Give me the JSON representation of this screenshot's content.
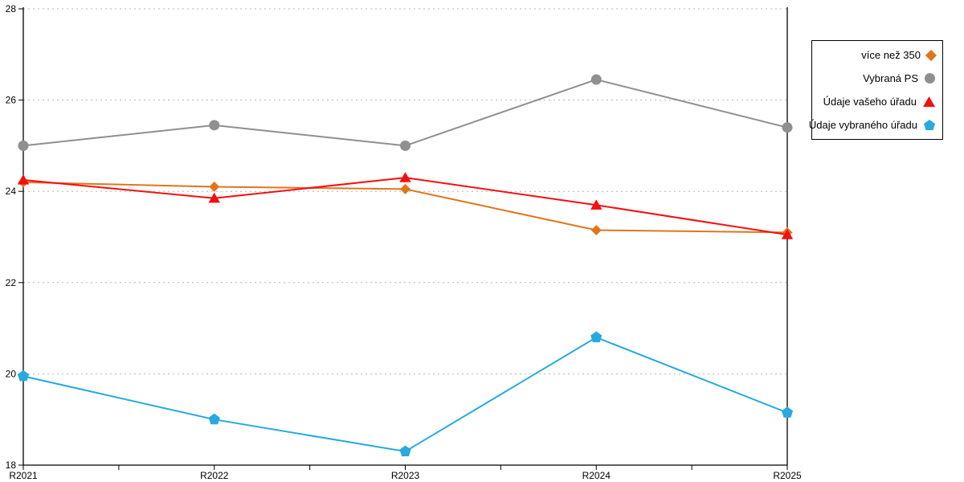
{
  "chart_data": {
    "type": "line",
    "title": "",
    "xlabel": "",
    "ylabel": "",
    "categories": [
      "R2021",
      "R2022",
      "R2023",
      "R2024",
      "R2025"
    ],
    "series": [
      {
        "name": "více než 350",
        "marker": "diamond",
        "color": "#E0751C",
        "values": [
          24.2,
          24.1,
          24.05,
          23.15,
          23.1
        ]
      },
      {
        "name": "Vybraná PS",
        "marker": "circle",
        "color": "#8F8F8F",
        "values": [
          25.0,
          25.45,
          25.0,
          26.45,
          25.4
        ]
      },
      {
        "name": "Údaje vašeho úřadu",
        "marker": "triangle",
        "color": "#F50F0F",
        "values": [
          24.25,
          23.85,
          24.3,
          23.7,
          23.05
        ]
      },
      {
        "name": "Údaje vybraného úřadu",
        "marker": "pentagon",
        "color": "#28A9E0",
        "values": [
          19.95,
          19.0,
          18.3,
          20.8,
          19.15
        ]
      }
    ],
    "ylim": [
      18,
      28
    ],
    "yticks": [
      18,
      20,
      22,
      24,
      26,
      28
    ],
    "x_minor_ticks": true,
    "grid": "horizontal-dashed",
    "legend_position": "right"
  },
  "colors": {
    "grid": "#b5b5b5",
    "axis": "#000000",
    "background": "#ffffff",
    "legend_border": "#000000"
  }
}
